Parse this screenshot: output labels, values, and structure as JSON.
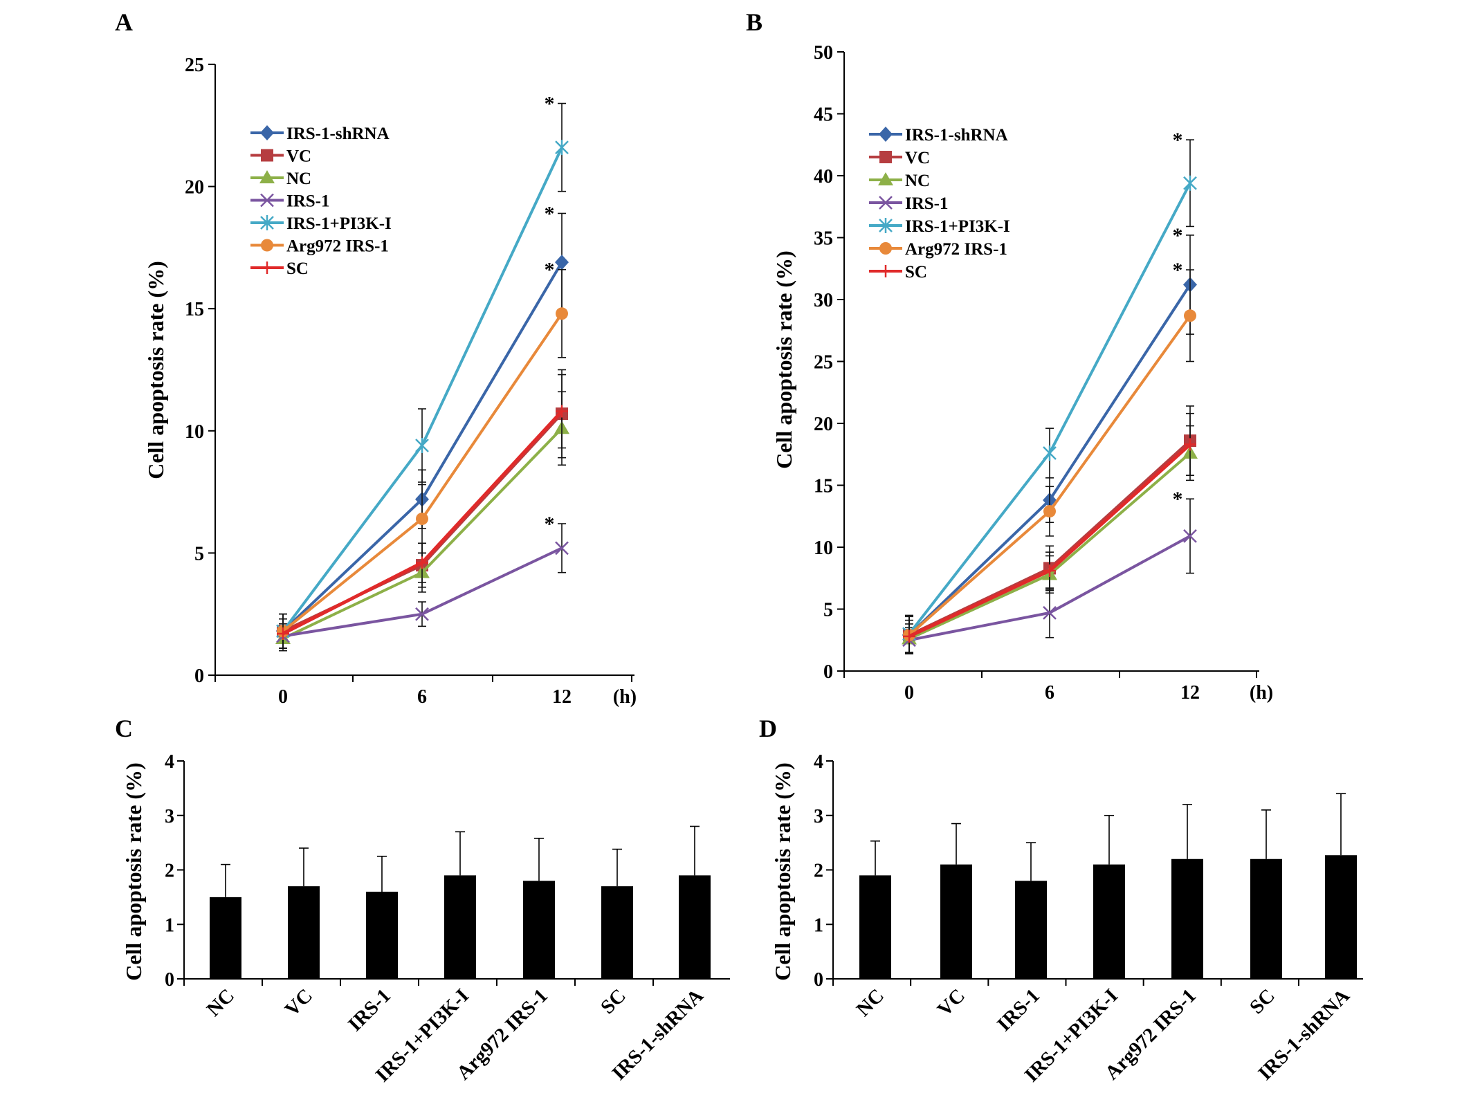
{
  "chart_data": [
    {
      "id": "A",
      "type": "line",
      "panel_label": "A",
      "xlabel": "(h)",
      "ylabel": "Cell apoptosis rate (%)",
      "x": [
        0,
        6,
        12
      ],
      "x_tick_labels": [
        "0",
        "6",
        "12"
      ],
      "ylim": [
        0,
        25
      ],
      "y_ticks": [
        0,
        5,
        10,
        15,
        20,
        25
      ],
      "legend_position": "top-left",
      "series": [
        {
          "name": "IRS-1-shRNA",
          "color": "#3a66a8",
          "marker": "diamond",
          "values": [
            1.8,
            7.2,
            16.9
          ],
          "errors": [
            0.7,
            1.2,
            2.0
          ],
          "significance": [
            "",
            "",
            "*"
          ]
        },
        {
          "name": "VC",
          "color": "#b63d40",
          "marker": "square",
          "values": [
            1.8,
            4.5,
            10.7
          ],
          "errors": [
            0.7,
            0.9,
            1.8
          ],
          "significance": [
            "",
            "",
            ""
          ]
        },
        {
          "name": "NC",
          "color": "#8db048",
          "marker": "triangle",
          "values": [
            1.5,
            4.2,
            10.1
          ],
          "errors": [
            0.5,
            0.8,
            1.5
          ],
          "significance": [
            "",
            "",
            ""
          ]
        },
        {
          "name": "IRS-1",
          "color": "#7a55a0",
          "marker": "x",
          "values": [
            1.6,
            2.5,
            5.2
          ],
          "errors": [
            0.5,
            0.5,
            1.0
          ],
          "significance": [
            "",
            "",
            "*"
          ]
        },
        {
          "name": "IRS-1+PI3K-I",
          "color": "#45a9c6",
          "marker": "star",
          "values": [
            1.8,
            9.4,
            21.6
          ],
          "errors": [
            0.7,
            1.5,
            1.8
          ],
          "significance": [
            "",
            "",
            "*"
          ]
        },
        {
          "name": "Arg972 IRS-1",
          "color": "#e8893a",
          "marker": "circle",
          "values": [
            1.8,
            6.4,
            14.8
          ],
          "errors": [
            0.7,
            1.4,
            1.8
          ],
          "significance": [
            "",
            "",
            "*"
          ]
        },
        {
          "name": "SC",
          "color": "#e02a2a",
          "marker": "plus",
          "values": [
            1.7,
            4.6,
            10.8
          ],
          "errors": [
            0.6,
            0.8,
            1.5
          ],
          "significance": [
            "",
            "",
            ""
          ]
        }
      ]
    },
    {
      "id": "B",
      "type": "line",
      "panel_label": "B",
      "xlabel": "(h)",
      "ylabel": "Cell apoptosis rate (%)",
      "x": [
        0,
        6,
        12
      ],
      "x_tick_labels": [
        "0",
        "6",
        "12"
      ],
      "ylim": [
        0,
        50
      ],
      "y_ticks": [
        0,
        5,
        10,
        15,
        20,
        25,
        30,
        35,
        40,
        45,
        50
      ],
      "legend_position": "top-left",
      "series": [
        {
          "name": "IRS-1-shRNA",
          "color": "#3a66a8",
          "marker": "diamond",
          "values": [
            2.9,
            13.8,
            31.2
          ],
          "errors": [
            1.5,
            1.8,
            4.0
          ],
          "significance": [
            "",
            "",
            "*"
          ]
        },
        {
          "name": "VC",
          "color": "#b63d40",
          "marker": "square",
          "values": [
            2.9,
            8.3,
            18.6
          ],
          "errors": [
            1.5,
            1.8,
            2.8
          ],
          "significance": [
            "",
            "",
            ""
          ]
        },
        {
          "name": "NC",
          "color": "#8db048",
          "marker": "triangle",
          "values": [
            2.6,
            7.8,
            17.6
          ],
          "errors": [
            1.2,
            1.5,
            2.2
          ],
          "significance": [
            "",
            "",
            ""
          ]
        },
        {
          "name": "IRS-1",
          "color": "#7a55a0",
          "marker": "x",
          "values": [
            2.5,
            4.7,
            10.9
          ],
          "errors": [
            1.0,
            2.0,
            3.0
          ],
          "significance": [
            "",
            "",
            "*"
          ]
        },
        {
          "name": "IRS-1+PI3K-I",
          "color": "#45a9c6",
          "marker": "star",
          "values": [
            3.0,
            17.6,
            39.4
          ],
          "errors": [
            1.5,
            2.0,
            3.5
          ],
          "significance": [
            "",
            "",
            "*"
          ]
        },
        {
          "name": "Arg972 IRS-1",
          "color": "#e8893a",
          "marker": "circle",
          "values": [
            2.9,
            12.9,
            28.7
          ],
          "errors": [
            1.5,
            2.0,
            3.7
          ],
          "significance": [
            "",
            "",
            "*"
          ]
        },
        {
          "name": "SC",
          "color": "#e02a2a",
          "marker": "plus",
          "values": [
            2.8,
            8.1,
            18.3
          ],
          "errors": [
            1.3,
            1.5,
            2.5
          ],
          "significance": [
            "",
            "",
            ""
          ]
        }
      ]
    },
    {
      "id": "C",
      "type": "bar",
      "panel_label": "C",
      "xlabel": "",
      "ylabel": "Cell apoptosis rate (%)",
      "categories": [
        "NC",
        "VC",
        "IRS-1",
        "IRS-1+PI3K-I",
        "Arg972 IRS-1",
        "SC",
        "IRS-1-shRNA"
      ],
      "values": [
        1.5,
        1.7,
        1.6,
        1.9,
        1.8,
        1.7,
        1.9
      ],
      "errors": [
        0.6,
        0.7,
        0.65,
        0.8,
        0.78,
        0.68,
        0.9
      ],
      "ylim": [
        0,
        4
      ],
      "y_ticks": [
        0,
        1,
        2,
        3,
        4
      ],
      "bar_color": "#000000"
    },
    {
      "id": "D",
      "type": "bar",
      "panel_label": "D",
      "xlabel": "",
      "ylabel": "Cell apoptosis rate (%)",
      "categories": [
        "NC",
        "VC",
        "IRS-1",
        "IRS-1+PI3K-I",
        "Arg972 IRS-1",
        "SC",
        "IRS-1-shRNA"
      ],
      "values": [
        1.9,
        2.1,
        1.8,
        2.1,
        2.2,
        2.2,
        2.27
      ],
      "errors": [
        0.63,
        0.75,
        0.7,
        0.9,
        1.0,
        0.9,
        1.13
      ],
      "ylim": [
        0,
        4
      ],
      "y_ticks": [
        0,
        1,
        2,
        3,
        4
      ],
      "bar_color": "#000000"
    }
  ]
}
